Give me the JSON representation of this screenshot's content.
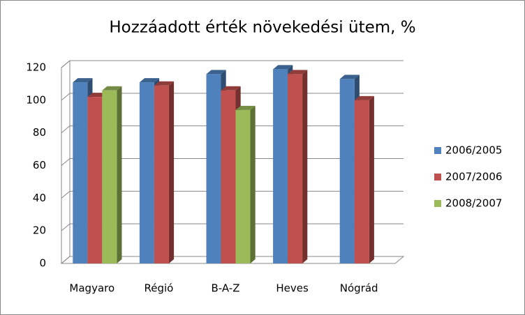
{
  "chart_data": {
    "type": "bar3d",
    "title": "Hozzáadott érték növekedési ütem, %",
    "categories": [
      "Magyaro",
      "Régió",
      "B-A-Z",
      "Heves",
      "Nógrád"
    ],
    "series": [
      {
        "name": "2006/2005",
        "color": "#4f81bd",
        "values": [
          111,
          111,
          116,
          119,
          113
        ]
      },
      {
        "name": "2007/2006",
        "color": "#c0504d",
        "values": [
          102,
          109,
          106,
          116,
          100
        ]
      },
      {
        "name": "2008/2007",
        "color": "#9bbb59",
        "values": [
          106,
          null,
          94,
          null,
          null
        ]
      }
    ],
    "ylim": [
      0,
      120
    ],
    "yticks": [
      0,
      20,
      40,
      60,
      80,
      100,
      120
    ],
    "grid": true,
    "legend": "right"
  }
}
